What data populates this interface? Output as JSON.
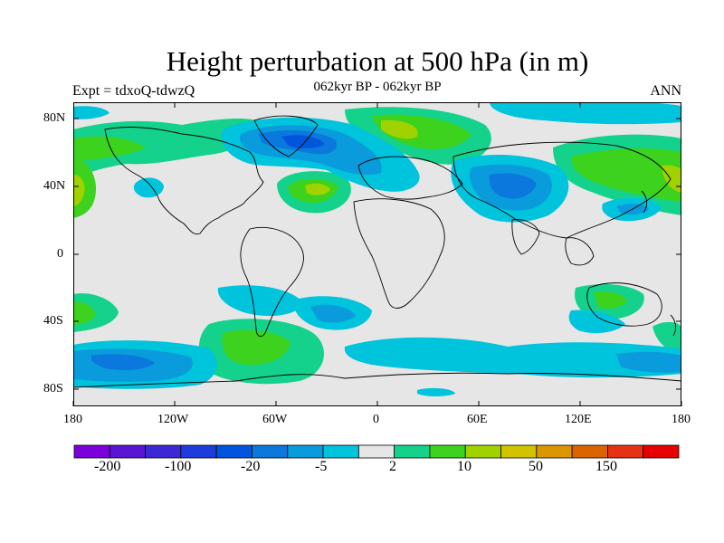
{
  "title": "Height perturbation at 500 hPa (in m)",
  "subtitle": "062kyr BP - 062kyr BP",
  "left_label": "Expt = tdxoQ-tdwzQ",
  "right_label": "ANN",
  "map": {
    "background_color": "#e6e6e6",
    "x_axis_labels": [
      "180",
      "120W",
      "60W",
      "0",
      "60E",
      "120E",
      "180"
    ],
    "y_axis_labels": [
      "80N",
      "40N",
      "0",
      "40S",
      "80S"
    ]
  },
  "colorbar": {
    "colors": [
      "#7a00dc",
      "#5a14d2",
      "#3c28d2",
      "#1e3cdc",
      "#0055dc",
      "#0a78dc",
      "#0a9bdc",
      "#00c3dc",
      "#e6e6e6",
      "#14d28c",
      "#3cd21e",
      "#a0d200",
      "#d2c300",
      "#dc9600",
      "#dc6400",
      "#e63214",
      "#e60000"
    ],
    "labels": [
      "-200",
      "-100",
      "-20",
      "-5",
      "2",
      "10",
      "50",
      "150"
    ]
  }
}
